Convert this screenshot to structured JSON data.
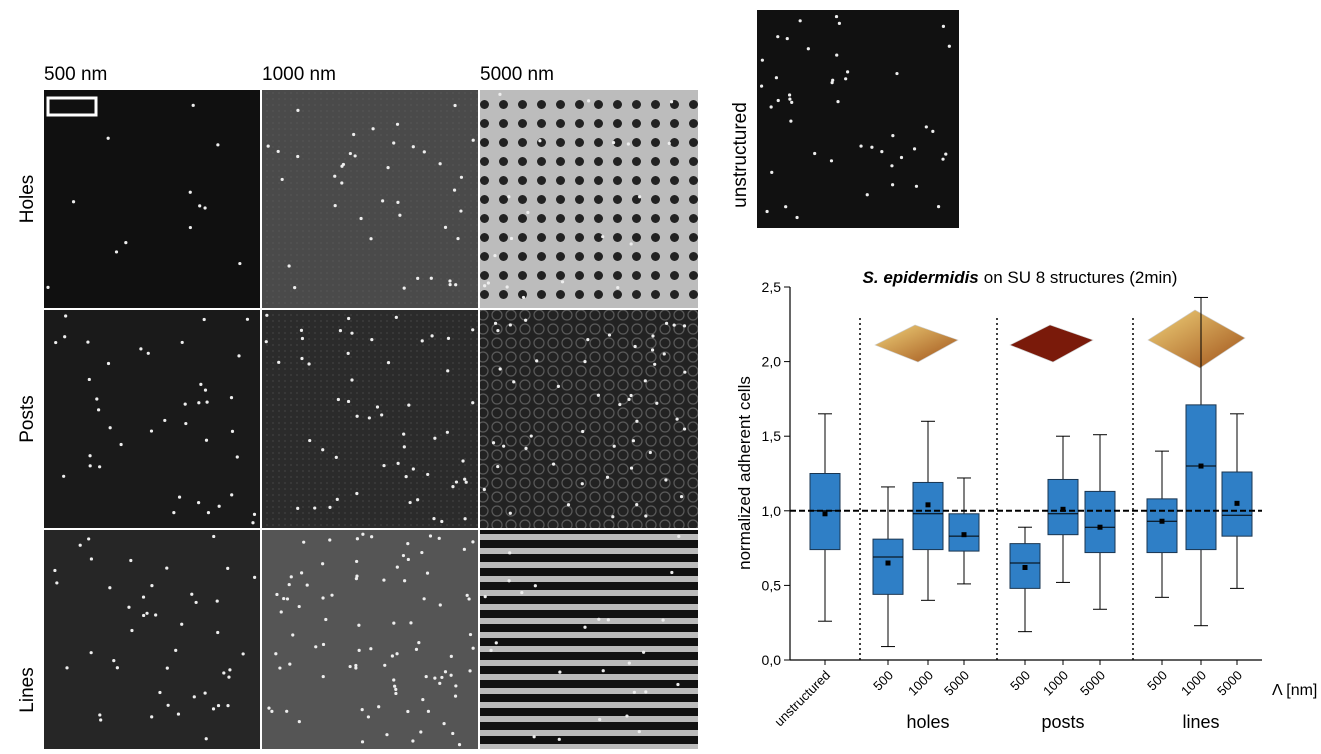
{
  "panel_labels": {
    "columns": [
      "500 nm",
      "1000 nm",
      "5000 nm"
    ],
    "rows": [
      "Holes",
      "Posts",
      "Lines"
    ],
    "unstructured": "unstructured"
  },
  "chart_data": {
    "type": "box",
    "title_italic": "S. epidermidis",
    "title_rest": "on SU 8 structures (2min)",
    "y_label": "normalized adherent cells",
    "x_unit_label": "Λ [nm]",
    "categories": [
      "unstructured",
      "500",
      "1000",
      "5000",
      "500",
      "1000",
      "5000",
      "500",
      "1000",
      "5000"
    ],
    "groups": [
      "holes",
      "posts",
      "lines"
    ],
    "color": "#2f7fc6",
    "low": [
      0.26,
      0.09,
      0.4,
      0.51,
      0.19,
      0.52,
      0.34,
      0.42,
      0.23,
      0.48
    ],
    "q1": [
      0.74,
      0.44,
      0.74,
      0.73,
      0.48,
      0.84,
      0.72,
      0.72,
      0.74,
      0.83
    ],
    "median": [
      1.0,
      0.69,
      0.98,
      0.83,
      0.65,
      0.98,
      0.89,
      0.93,
      1.3,
      0.97
    ],
    "q3": [
      1.25,
      0.81,
      1.19,
      0.98,
      0.78,
      1.21,
      1.13,
      1.08,
      1.71,
      1.26
    ],
    "high": [
      1.65,
      1.16,
      1.6,
      1.22,
      0.89,
      1.5,
      1.51,
      1.4,
      2.43,
      1.65
    ],
    "mean": [
      0.98,
      0.65,
      1.04,
      0.84,
      0.62,
      1.01,
      0.89,
      0.93,
      1.3,
      1.05
    ],
    "reference_line": 1.0,
    "ylim": [
      0,
      2.5
    ],
    "yticks": [
      {
        "value": 0,
        "label": "0,0"
      },
      {
        "value": 0.5,
        "label": "0,5"
      },
      {
        "value": 1.0,
        "label": "1,0"
      },
      {
        "value": 1.5,
        "label": "1,5"
      },
      {
        "value": 2.0,
        "label": "2,0"
      },
      {
        "value": 2.5,
        "label": "2,5"
      }
    ]
  }
}
